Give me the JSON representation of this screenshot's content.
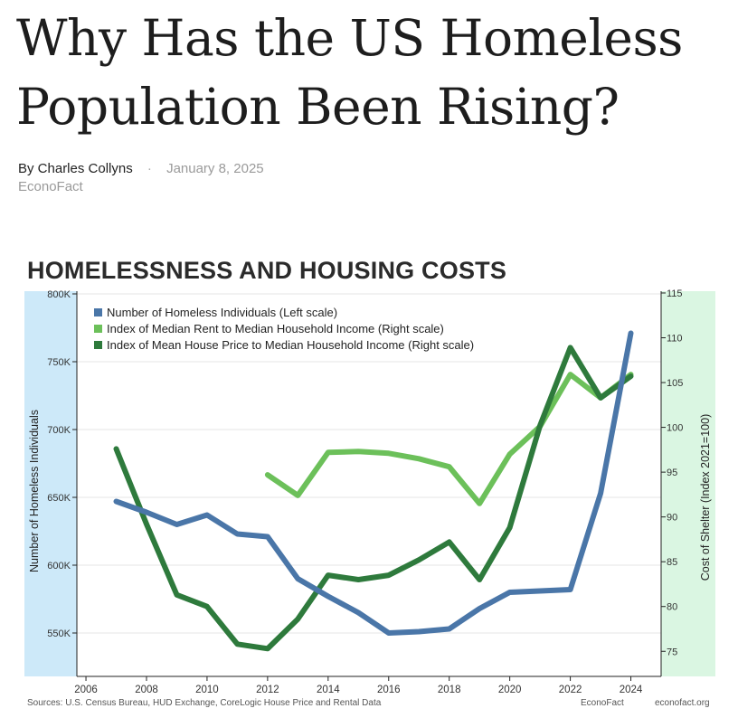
{
  "article": {
    "title": "Why Has the US Homeless Population Been Rising?",
    "author": "By Charles Collyns",
    "separator": "·",
    "date": "January 8, 2025",
    "site": "EconoFact"
  },
  "chart_data": {
    "type": "line",
    "title": "HOMELESSNESS AND HOUSING COSTS",
    "xlabel": "",
    "ylabel_left": "Number of Homeless Individuals",
    "ylabel_right": "Cost of Shelter (Index 2021=100)",
    "xlim": [
      2005.7,
      2025
    ],
    "ylim_left": [
      518000,
      802000
    ],
    "ylim_right": [
      72.2,
      115.2
    ],
    "x_ticks": [
      2006,
      2008,
      2010,
      2012,
      2014,
      2016,
      2018,
      2020,
      2022,
      2024
    ],
    "left_ticks": [
      {
        "value": 550000,
        "label": "550K"
      },
      {
        "value": 600000,
        "label": "600K"
      },
      {
        "value": 650000,
        "label": "650K"
      },
      {
        "value": 700000,
        "label": "700K"
      },
      {
        "value": 750000,
        "label": "750K"
      },
      {
        "value": 800000,
        "label": "800K"
      }
    ],
    "right_ticks": [
      {
        "value": 75,
        "label": "75"
      },
      {
        "value": 80,
        "label": "80"
      },
      {
        "value": 85,
        "label": "85"
      },
      {
        "value": 90,
        "label": "90"
      },
      {
        "value": 95,
        "label": "95"
      },
      {
        "value": 100,
        "label": "100"
      },
      {
        "value": 105,
        "label": "105"
      },
      {
        "value": 110,
        "label": "110"
      },
      {
        "value": 115,
        "label": "115"
      }
    ],
    "grid": true,
    "legend_position": "top-left",
    "series": [
      {
        "name": "Number of Homeless Individuals (Left scale)",
        "axis": "left",
        "color": "#4a76a8",
        "points": [
          [
            2007,
            647000
          ],
          [
            2008,
            639000
          ],
          [
            2009,
            630000
          ],
          [
            2010,
            637000
          ],
          [
            2011,
            623000
          ],
          [
            2012,
            621000
          ],
          [
            2013,
            590000
          ],
          [
            2014,
            577000
          ],
          [
            2015,
            565000
          ],
          [
            2016,
            550000
          ],
          [
            2017,
            551000
          ],
          [
            2018,
            553000
          ],
          [
            2019,
            568000
          ],
          [
            2020,
            580000
          ],
          [
            2021,
            581000
          ],
          [
            2022,
            582000
          ],
          [
            2023,
            653000
          ],
          [
            2024,
            771000
          ]
        ]
      },
      {
        "name": "Index of Median Rent to Median Household Income (Right scale)",
        "axis": "right",
        "color": "#6cc05a",
        "points": [
          [
            2012,
            94.7
          ],
          [
            2013,
            92.4
          ],
          [
            2014,
            97.2
          ],
          [
            2015,
            97.3
          ],
          [
            2016,
            97.1
          ],
          [
            2017,
            96.5
          ],
          [
            2018,
            95.6
          ],
          [
            2019,
            91.5
          ],
          [
            2020,
            97.0
          ],
          [
            2021,
            100.1
          ],
          [
            2022,
            105.9
          ],
          [
            2023,
            103.3
          ],
          [
            2024,
            105.9
          ]
        ]
      },
      {
        "name": "Index of Mean House Price to Median Household Income (Right scale)",
        "axis": "right",
        "color": "#2e7a3c",
        "points": [
          [
            2007,
            97.6
          ],
          [
            2008,
            89.2
          ],
          [
            2009,
            81.3
          ],
          [
            2010,
            80.0
          ],
          [
            2011,
            75.8
          ],
          [
            2012,
            75.3
          ],
          [
            2013,
            78.6
          ],
          [
            2014,
            83.5
          ],
          [
            2015,
            83.0
          ],
          [
            2016,
            83.5
          ],
          [
            2017,
            85.2
          ],
          [
            2018,
            87.2
          ],
          [
            2019,
            83.0
          ],
          [
            2020,
            88.8
          ],
          [
            2021,
            100.2
          ],
          [
            2022,
            108.9
          ],
          [
            2023,
            103.3
          ],
          [
            2024,
            105.7
          ]
        ]
      }
    ],
    "footer_source": "Sources: U.S. Census Bureau, HUD Exchange, CoreLogic House Price and Rental Data",
    "footer_brand": "EconoFact",
    "footer_url": "econofact.org"
  },
  "style": {
    "left_panel_color": "#cde9f9",
    "right_panel_color": "#daf6e2",
    "grid_color": "#e6e6e6",
    "axis_color": "#222222",
    "tick_label_color": "#333333"
  }
}
